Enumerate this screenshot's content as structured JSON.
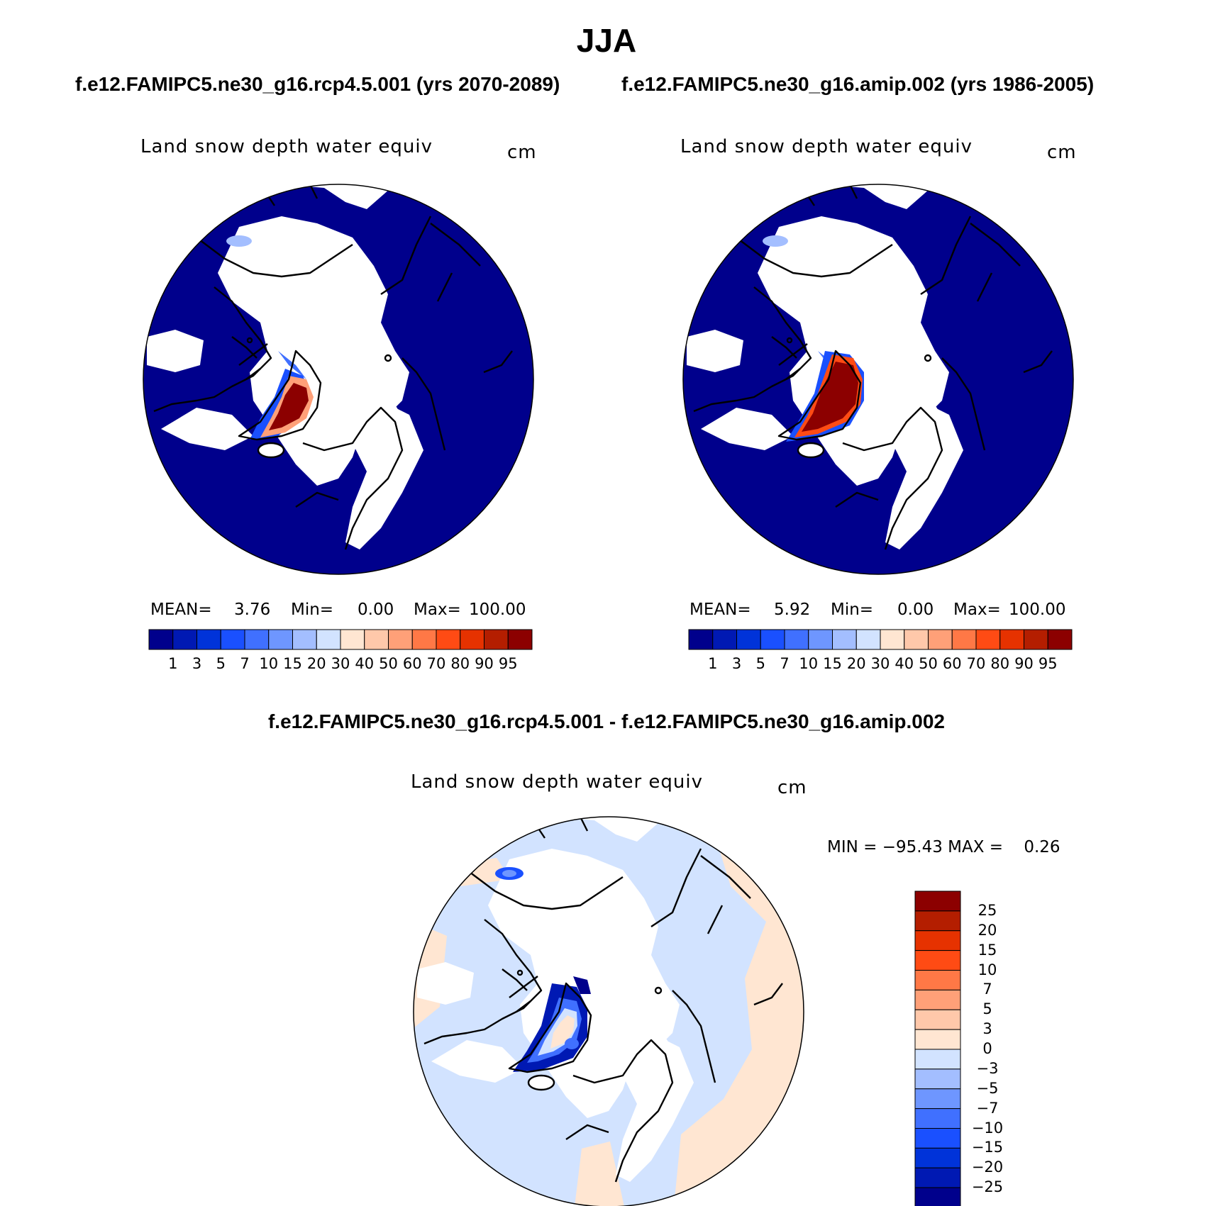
{
  "title": "JJA",
  "panels": [
    {
      "case_title": "f.e12.FAMIPC5.ne30_g16.rcp4.5.001 (yrs 2070-2089)",
      "variable": "Land snow depth water equiv",
      "units": "cm",
      "stats": {
        "mean_label": "MEAN=",
        "mean": "3.76",
        "min_label": "Min=",
        "min": "0.00",
        "max_label": "Max=",
        "max": "100.00"
      }
    },
    {
      "case_title": "f.e12.FAMIPC5.ne30_g16.amip.002 (yrs 1986-2005)",
      "variable": "Land snow depth water equiv",
      "units": "cm",
      "stats": {
        "mean_label": "MEAN=",
        "mean": "5.92",
        "min_label": "Min=",
        "min": "0.00",
        "max_label": "Max=",
        "max": "100.00"
      }
    }
  ],
  "diff_panel": {
    "title": "f.e12.FAMIPC5.ne30_g16.rcp4.5.001 - f.e12.FAMIPC5.ne30_g16.amip.002",
    "variable": "Land snow depth water equiv",
    "units": "cm",
    "minmax_text": "MIN = −95.43 MAX =    0.26"
  },
  "colorbar_abs": {
    "labels": [
      "1",
      "3",
      "5",
      "7",
      "10",
      "15",
      "20",
      "30",
      "40",
      "50",
      "60",
      "70",
      "80",
      "90",
      "95"
    ],
    "colors": [
      "#00008C",
      "#0019B3",
      "#0033D9",
      "#1A50FF",
      "#4070FF",
      "#6E96FF",
      "#A3BEFF",
      "#D2E3FF",
      "#FFE6D2",
      "#FFC8AA",
      "#FFA078",
      "#FF7846",
      "#FF4B14",
      "#E63200",
      "#B41E00",
      "#8C0000"
    ]
  },
  "colorbar_diff": {
    "labels": [
      "25",
      "20",
      "15",
      "10",
      "7",
      "5",
      "3",
      "0",
      "−3",
      "−5",
      "−7",
      "−10",
      "−15",
      "−20",
      "−25"
    ],
    "colors": [
      "#8C0000",
      "#B41E00",
      "#E63200",
      "#FF4B14",
      "#FF7846",
      "#FFA078",
      "#FFC8AA",
      "#FFE6D2",
      "#D2E3FF",
      "#A3BEFF",
      "#6E96FF",
      "#4070FF",
      "#1A50FF",
      "#0033D9",
      "#0019B3",
      "#00008C"
    ]
  }
}
